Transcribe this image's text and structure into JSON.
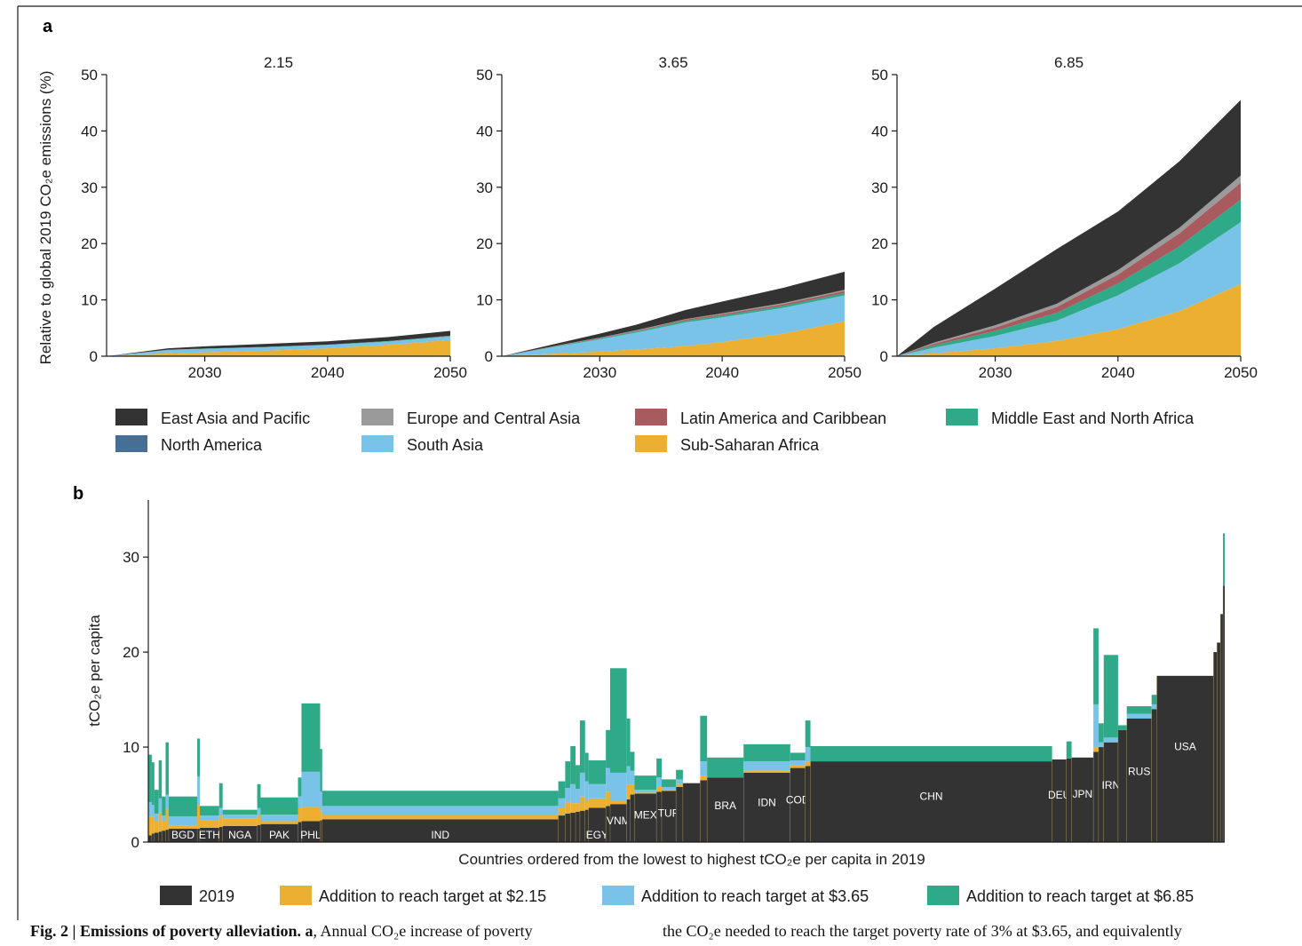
{
  "panel_a_label": "a",
  "panel_b_label": "b",
  "colors": {
    "east_asia_pacific": "#333333",
    "europe_central_asia": "#9a9a9a",
    "latin_america_caribbean": "#a85a5e",
    "middle_east_north_africa": "#2eaa88",
    "north_america": "#456f94",
    "south_asia": "#79c2e8",
    "sub_saharan_africa": "#ebb031",
    "y2019": "#333333",
    "add_215": "#ebb031",
    "add_365": "#79c2e8",
    "add_685": "#2eaa88"
  },
  "legend_a": [
    {
      "label": "East Asia and Pacific",
      "color": "#333333"
    },
    {
      "label": "Europe and Central Asia",
      "color": "#9a9a9a"
    },
    {
      "label": "Latin America and Caribbean",
      "color": "#a85a5e"
    },
    {
      "label": "Middle East and North Africa",
      "color": "#2eaa88"
    },
    {
      "label": "North America",
      "color": "#456f94"
    },
    {
      "label": "South Asia",
      "color": "#79c2e8"
    },
    {
      "label": "Sub-Saharan Africa",
      "color": "#ebb031"
    }
  ],
  "legend_b": [
    {
      "label": "2019",
      "color": "#333333"
    },
    {
      "label": "Addition to reach target at $2.15",
      "color": "#ebb031"
    },
    {
      "label": "Addition to reach target at $3.65",
      "color": "#79c2e8"
    },
    {
      "label": "Addition to reach target at $6.85",
      "color": "#2eaa88"
    }
  ],
  "caption": {
    "bold": "Fig. 2 | Emissions of poverty alleviation. a",
    "left_rest": ", Annual CO₂e increase of poverty",
    "right": "the CO₂e needed to reach the target poverty rate of 3% at $3.65, and equivalently"
  },
  "chart_data": [
    {
      "type": "area",
      "title": "2.15",
      "ylabel": "Relative to global 2019 CO₂e emissions (%)",
      "xlabel": "",
      "xlim": [
        2022,
        2050
      ],
      "ylim": [
        0,
        50
      ],
      "xticks": [
        2030,
        2040,
        2050
      ],
      "yticks": [
        0,
        10,
        20,
        30,
        40,
        50
      ],
      "x": [
        2022,
        2027,
        2030,
        2035,
        2040,
        2045,
        2050
      ],
      "series": [
        {
          "name": "Sub-Saharan Africa",
          "values": [
            0,
            0.5,
            0.7,
            1.0,
            1.4,
            2.0,
            2.9
          ]
        },
        {
          "name": "South Asia",
          "values": [
            0,
            0.6,
            0.6,
            0.6,
            0.6,
            0.6,
            0.6
          ]
        },
        {
          "name": "North America",
          "values": [
            0,
            0,
            0,
            0,
            0,
            0,
            0
          ]
        },
        {
          "name": "Middle East and North Africa",
          "values": [
            0,
            0.05,
            0.05,
            0.05,
            0.05,
            0.1,
            0.1
          ]
        },
        {
          "name": "Latin America and Caribbean",
          "values": [
            0,
            0,
            0,
            0,
            0,
            0,
            0.05
          ]
        },
        {
          "name": "Europe and Central Asia",
          "values": [
            0,
            0,
            0,
            0,
            0,
            0,
            0
          ]
        },
        {
          "name": "East Asia and Pacific",
          "values": [
            0,
            0.25,
            0.4,
            0.55,
            0.6,
            0.7,
            0.85
          ]
        }
      ]
    },
    {
      "type": "area",
      "title": "3.65",
      "ylabel": "",
      "xlabel": "",
      "xlim": [
        2022,
        2050
      ],
      "ylim": [
        0,
        50
      ],
      "xticks": [
        2030,
        2040,
        2050
      ],
      "yticks": [
        0,
        10,
        20,
        30,
        40,
        50
      ],
      "x": [
        2022,
        2027,
        2030,
        2033,
        2037,
        2040,
        2045,
        2050
      ],
      "series": [
        {
          "name": "Sub-Saharan Africa",
          "values": [
            0,
            0.5,
            0.8,
            1.2,
            1.8,
            2.5,
            4.0,
            6.2
          ]
        },
        {
          "name": "South Asia",
          "values": [
            0,
            1.4,
            2.2,
            3.0,
            4.2,
            4.4,
            4.6,
            4.6
          ]
        },
        {
          "name": "North America",
          "values": [
            0,
            0,
            0,
            0,
            0,
            0,
            0,
            0
          ]
        },
        {
          "name": "Middle East and North Africa",
          "values": [
            0,
            0.1,
            0.15,
            0.2,
            0.3,
            0.3,
            0.35,
            0.4
          ]
        },
        {
          "name": "Latin America and Caribbean",
          "values": [
            0,
            0.05,
            0.1,
            0.1,
            0.2,
            0.25,
            0.3,
            0.4
          ]
        },
        {
          "name": "Europe and Central Asia",
          "values": [
            0,
            0.05,
            0.05,
            0.1,
            0.1,
            0.15,
            0.2,
            0.2
          ]
        },
        {
          "name": "East Asia and Pacific",
          "values": [
            0,
            0.4,
            0.7,
            1.0,
            1.6,
            2.1,
            2.7,
            3.2
          ]
        }
      ]
    },
    {
      "type": "area",
      "title": "6.85",
      "ylabel": "",
      "xlabel": "",
      "xlim": [
        2022,
        2050
      ],
      "ylim": [
        0,
        50
      ],
      "xticks": [
        2030,
        2040,
        2050
      ],
      "yticks": [
        0,
        10,
        20,
        30,
        40,
        50
      ],
      "x": [
        2022,
        2025,
        2030,
        2035,
        2040,
        2045,
        2050
      ],
      "series": [
        {
          "name": "Sub-Saharan Africa",
          "values": [
            0,
            0.5,
            1.4,
            2.7,
            4.8,
            8.0,
            12.8
          ]
        },
        {
          "name": "South Asia",
          "values": [
            0,
            1.0,
            2.2,
            3.6,
            6.0,
            8.5,
            11.0
          ]
        },
        {
          "name": "North America",
          "values": [
            0,
            0,
            0,
            0,
            0,
            0,
            0
          ]
        },
        {
          "name": "Middle East and North Africa",
          "values": [
            0,
            0.4,
            0.9,
            1.4,
            2.1,
            3.0,
            4.0
          ]
        },
        {
          "name": "Latin America and Caribbean",
          "values": [
            0,
            0.3,
            0.6,
            1.0,
            1.6,
            2.3,
            3.0
          ]
        },
        {
          "name": "Europe and Central Asia",
          "values": [
            0,
            0.2,
            0.4,
            0.6,
            0.8,
            1.0,
            1.3
          ]
        },
        {
          "name": "East Asia and Pacific",
          "values": [
            0,
            2.8,
            6.5,
            9.7,
            10.4,
            11.8,
            13.4
          ]
        }
      ]
    },
    {
      "type": "bar",
      "title": "",
      "xlabel": "Countries ordered from the lowest to highest tCO₂e per capita in 2019",
      "ylabel": "tCO₂e per capita",
      "ylim": [
        0,
        36
      ],
      "yticks": [
        0,
        10,
        20,
        30
      ],
      "note": "Bar width proportional to population; country order from lowest to highest 2019 emissions.",
      "countries": [
        {
          "name": "",
          "pop": 20,
          "y2019": 0.7,
          "a215": 2.0,
          "a365": 1.5,
          "a685": 5.0
        },
        {
          "name": "",
          "pop": 15,
          "y2019": 0.9,
          "a215": 1.8,
          "a365": 1.2,
          "a685": 4.5
        },
        {
          "name": "",
          "pop": 25,
          "y2019": 1.0,
          "a215": 1.2,
          "a365": 0.8,
          "a685": 2.5
        },
        {
          "name": "",
          "pop": 18,
          "y2019": 1.1,
          "a215": 2.0,
          "a365": 1.5,
          "a685": 4.0
        },
        {
          "name": "",
          "pop": 22,
          "y2019": 1.2,
          "a215": 1.0,
          "a365": 0.6,
          "a685": 2.0
        },
        {
          "name": "",
          "pop": 18,
          "y2019": 1.3,
          "a215": 2.2,
          "a365": 1.5,
          "a685": 5.5
        },
        {
          "name": "BGD",
          "pop": 165,
          "y2019": 1.4,
          "a215": 0.3,
          "a365": 1.0,
          "a685": 2.1
        },
        {
          "name": "",
          "pop": 15,
          "y2019": 1.4,
          "a215": 2.5,
          "a365": 3.0,
          "a685": 4.0
        },
        {
          "name": "ETH",
          "pop": 112,
          "y2019": 1.5,
          "a215": 0.8,
          "a365": 0.5,
          "a685": 1.0
        },
        {
          "name": "",
          "pop": 20,
          "y2019": 1.6,
          "a215": 1.2,
          "a365": 0.8,
          "a685": 2.6
        },
        {
          "name": "NGA",
          "pop": 200,
          "y2019": 1.7,
          "a215": 0.8,
          "a365": 0.4,
          "a685": 0.5
        },
        {
          "name": "",
          "pop": 20,
          "y2019": 1.8,
          "a215": 1.0,
          "a365": 0.8,
          "a685": 2.5
        },
        {
          "name": "PAK",
          "pop": 216,
          "y2019": 1.9,
          "a215": 0.3,
          "a365": 0.7,
          "a685": 1.8
        },
        {
          "name": "",
          "pop": 20,
          "y2019": 2.1,
          "a215": 1.5,
          "a365": 1.2,
          "a685": 2.0
        },
        {
          "name": "PHL",
          "pop": 108,
          "y2019": 2.2,
          "a215": 1.5,
          "a365": 3.7,
          "a685": 7.2
        },
        {
          "name": "",
          "pop": 12,
          "y2019": 2.3,
          "a215": 1.0,
          "a365": 2.0,
          "a685": 4.5
        },
        {
          "name": "IND",
          "pop": 1366,
          "y2019": 2.4,
          "a215": 0.5,
          "a365": 0.9,
          "a685": 1.6
        },
        {
          "name": "",
          "pop": 40,
          "y2019": 2.8,
          "a215": 0.8,
          "a365": 1.0,
          "a685": 1.8
        },
        {
          "name": "",
          "pop": 30,
          "y2019": 3.0,
          "a215": 1.2,
          "a365": 1.5,
          "a685": 2.8
        },
        {
          "name": "",
          "pop": 30,
          "y2019": 3.1,
          "a215": 1.0,
          "a365": 2.0,
          "a685": 4.0
        },
        {
          "name": "",
          "pop": 25,
          "y2019": 3.2,
          "a215": 0.9,
          "a365": 1.5,
          "a685": 2.5
        },
        {
          "name": "",
          "pop": 30,
          "y2019": 3.3,
          "a215": 1.5,
          "a365": 2.5,
          "a685": 5.5
        },
        {
          "name": "",
          "pop": 20,
          "y2019": 3.4,
          "a215": 1.0,
          "a365": 2.0,
          "a685": 3.0
        },
        {
          "name": "EGY",
          "pop": 100,
          "y2019": 3.6,
          "a215": 1.0,
          "a365": 1.5,
          "a685": 2.5
        },
        {
          "name": "",
          "pop": 25,
          "y2019": 3.8,
          "a215": 1.5,
          "a365": 2.5,
          "a685": 4.0
        },
        {
          "name": "VNM",
          "pop": 96,
          "y2019": 4.0,
          "a215": 0.3,
          "a365": 3.0,
          "a685": 11.0
        },
        {
          "name": "",
          "pop": 20,
          "y2019": 4.5,
          "a215": 1.5,
          "a365": 2.0,
          "a685": 5.0
        },
        {
          "name": "",
          "pop": 25,
          "y2019": 5.0,
          "a215": 1.0,
          "a365": 1.5,
          "a685": 2.0
        },
        {
          "name": "MEX",
          "pop": 127,
          "y2019": 5.1,
          "a215": 0.1,
          "a365": 0.3,
          "a685": 1.5
        },
        {
          "name": "",
          "pop": 30,
          "y2019": 5.3,
          "a215": 0.5,
          "a365": 1.0,
          "a685": 2.0
        },
        {
          "name": "TUR",
          "pop": 83,
          "y2019": 5.4,
          "a215": 0.1,
          "a365": 0.3,
          "a685": 0.8
        },
        {
          "name": "",
          "pop": 40,
          "y2019": 5.8,
          "a215": 0.3,
          "a365": 0.5,
          "a685": 1.0
        },
        {
          "name": "",
          "pop": 100,
          "y2019": 6.2,
          "a215": 0.0,
          "a365": 0.0,
          "a685": 0.0
        },
        {
          "name": "",
          "pop": 40,
          "y2019": 6.5,
          "a215": 0.5,
          "a365": 1.5,
          "a685": 4.8
        },
        {
          "name": "BRA",
          "pop": 211,
          "y2019": 6.8,
          "a215": 0.0,
          "a365": 0.0,
          "a685": 2.1
        },
        {
          "name": "IDN",
          "pop": 270,
          "y2019": 7.3,
          "a215": 0.2,
          "a365": 1.0,
          "a685": 1.8
        },
        {
          "name": "COD",
          "pop": 87,
          "y2019": 7.8,
          "a215": 0.3,
          "a365": 0.5,
          "a685": 0.8
        },
        {
          "name": "",
          "pop": 30,
          "y2019": 8.0,
          "a215": 0.5,
          "a365": 1.5,
          "a685": 2.8
        },
        {
          "name": "CHN",
          "pop": 1398,
          "y2019": 8.5,
          "a215": 0.0,
          "a365": 0.0,
          "a685": 1.6
        },
        {
          "name": "DEU",
          "pop": 83,
          "y2019": 8.7,
          "a215": 0.0,
          "a365": 0.0,
          "a685": 0.0
        },
        {
          "name": "",
          "pop": 30,
          "y2019": 8.8,
          "a215": 0.0,
          "a365": 0.0,
          "a685": 1.8
        },
        {
          "name": "JPN",
          "pop": 126,
          "y2019": 8.9,
          "a215": 0.0,
          "a365": 0.0,
          "a685": 0.0
        },
        {
          "name": "",
          "pop": 30,
          "y2019": 9.5,
          "a215": 0.5,
          "a365": 4.5,
          "a685": 8.0
        },
        {
          "name": "",
          "pop": 30,
          "y2019": 10.0,
          "a215": 0.0,
          "a365": 0.5,
          "a685": 2.0
        },
        {
          "name": "IRN",
          "pop": 83,
          "y2019": 10.5,
          "a215": 0.0,
          "a365": 0.5,
          "a685": 8.7
        },
        {
          "name": "",
          "pop": 50,
          "y2019": 11.8,
          "a215": 0.0,
          "a365": 0.0,
          "a685": 0.5
        },
        {
          "name": "RUS",
          "pop": 144,
          "y2019": 13.0,
          "a215": 0.0,
          "a365": 0.5,
          "a685": 0.8
        },
        {
          "name": "",
          "pop": 30,
          "y2019": 14.0,
          "a215": 0.0,
          "a365": 0.5,
          "a685": 1.0
        },
        {
          "name": "USA",
          "pop": 328,
          "y2019": 17.5,
          "a215": 0.0,
          "a365": 0.0,
          "a685": 0.0
        },
        {
          "name": "",
          "pop": 20,
          "y2019": 20.0,
          "a215": 0.0,
          "a365": 0.0,
          "a685": 0.0
        },
        {
          "name": "",
          "pop": 20,
          "y2019": 21.0,
          "a215": 0.0,
          "a365": 0.0,
          "a685": 0.0
        },
        {
          "name": "",
          "pop": 15,
          "y2019": 24.0,
          "a215": 0.0,
          "a365": 0.0,
          "a685": 0.0
        },
        {
          "name": "",
          "pop": 10,
          "y2019": 27.0,
          "a215": 0.0,
          "a365": 0.0,
          "a685": 5.5
        }
      ]
    }
  ]
}
